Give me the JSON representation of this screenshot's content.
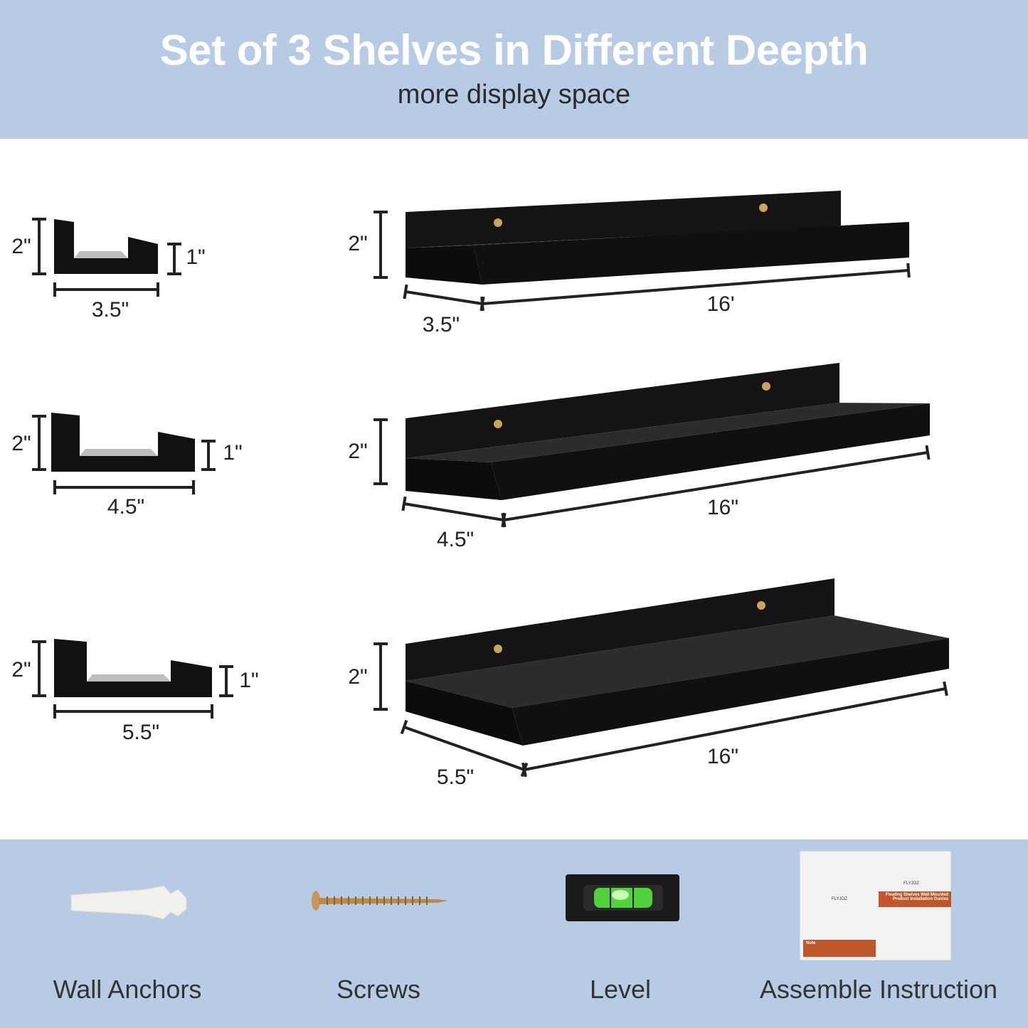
{
  "header": {
    "title": "Set of 3 Shelves in Different Deepth",
    "subtitle": "more display space"
  },
  "shelves": [
    {
      "height": "2\"",
      "lip": "1\"",
      "depth": "3.5\"",
      "depth_3d": "3.5\"",
      "height_3d": "2\"",
      "length": "16'"
    },
    {
      "height": "2\"",
      "lip": "1\"",
      "depth": "4.5\"",
      "depth_3d": "4.5\"",
      "height_3d": "2\"",
      "length": "16\""
    },
    {
      "height": "2\"",
      "lip": "1\"",
      "depth": "5.5\"",
      "depth_3d": "5.5\"",
      "height_3d": "2\"",
      "length": "16\""
    }
  ],
  "accessories": [
    {
      "label": "Wall Anchors",
      "icon": "wall-anchor-icon"
    },
    {
      "label": "Screws",
      "icon": "screw-icon"
    },
    {
      "label": "Level",
      "icon": "level-icon"
    },
    {
      "label": "Assemble Instruction",
      "icon": "instruction-booklet-icon"
    }
  ],
  "booklet": {
    "brand": "FLYJOZ",
    "title_line1": "Floating Shelves Wall Mounted",
    "title_line2": "Product Installation Guides",
    "note": "Note"
  },
  "colors": {
    "banner": "#b8cbe4",
    "shelf": "#111111",
    "booklet_accent": "#c0562a"
  }
}
